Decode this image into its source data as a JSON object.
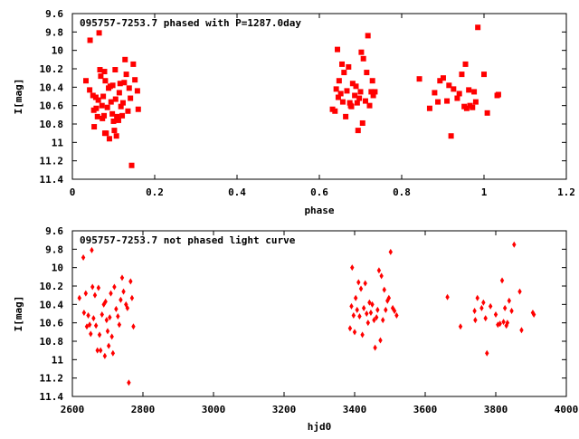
{
  "chart_data": [
    {
      "type": "scatter",
      "title": "095757-7253.7 phased with P=1287.0day",
      "xlabel": "phase",
      "ylabel": "I[mag]",
      "xlim": [
        0,
        1.2
      ],
      "ylim": [
        11.4,
        9.6
      ],
      "y_inverted": true,
      "x_ticks": [
        "0",
        "0.2",
        "0.4",
        "0.6",
        "0.8",
        "1",
        "1.2"
      ],
      "y_ticks": [
        "9.6",
        "9.8",
        "10",
        "10.2",
        "10.4",
        "10.6",
        "10.8",
        "11",
        "11.2",
        "11.4"
      ],
      "marker": "filled-square",
      "color": "#ff0000",
      "points": [
        [
          0.033,
          10.33
        ],
        [
          0.042,
          10.43
        ],
        [
          0.043,
          9.89
        ],
        [
          0.05,
          10.49
        ],
        [
          0.052,
          10.65
        ],
        [
          0.053,
          10.83
        ],
        [
          0.057,
          10.51
        ],
        [
          0.058,
          10.63
        ],
        [
          0.061,
          10.72
        ],
        [
          0.063,
          10.54
        ],
        [
          0.065,
          9.81
        ],
        [
          0.067,
          10.21
        ],
        [
          0.069,
          10.28
        ],
        [
          0.072,
          10.6
        ],
        [
          0.073,
          10.74
        ],
        [
          0.075,
          10.5
        ],
        [
          0.077,
          10.71
        ],
        [
          0.078,
          10.23
        ],
        [
          0.079,
          10.9
        ],
        [
          0.08,
          10.33
        ],
        [
          0.082,
          10.9
        ],
        [
          0.085,
          10.62
        ],
        [
          0.088,
          10.41
        ],
        [
          0.09,
          10.96
        ],
        [
          0.092,
          10.39
        ],
        [
          0.094,
          10.56
        ],
        [
          0.097,
          10.69
        ],
        [
          0.098,
          10.38
        ],
        [
          0.1,
          10.77
        ],
        [
          0.102,
          10.87
        ],
        [
          0.104,
          10.21
        ],
        [
          0.105,
          10.53
        ],
        [
          0.107,
          10.93
        ],
        [
          0.108,
          10.72
        ],
        [
          0.112,
          10.76
        ],
        [
          0.114,
          10.46
        ],
        [
          0.116,
          10.36
        ],
        [
          0.118,
          10.61
        ],
        [
          0.121,
          10.71
        ],
        [
          0.123,
          10.57
        ],
        [
          0.126,
          10.35
        ],
        [
          0.128,
          10.1
        ],
        [
          0.131,
          10.26
        ],
        [
          0.135,
          10.66
        ],
        [
          0.138,
          10.41
        ],
        [
          0.141,
          10.52
        ],
        [
          0.144,
          11.25
        ],
        [
          0.148,
          10.15
        ],
        [
          0.152,
          10.32
        ],
        [
          0.158,
          10.44
        ],
        [
          0.16,
          10.64
        ],
        [
          0.632,
          10.64
        ],
        [
          0.638,
          10.66
        ],
        [
          0.641,
          10.42
        ],
        [
          0.644,
          9.99
        ],
        [
          0.646,
          10.51
        ],
        [
          0.648,
          10.33
        ],
        [
          0.652,
          10.47
        ],
        [
          0.655,
          10.15
        ],
        [
          0.657,
          10.56
        ],
        [
          0.66,
          10.24
        ],
        [
          0.664,
          10.72
        ],
        [
          0.667,
          10.44
        ],
        [
          0.671,
          10.18
        ],
        [
          0.674,
          10.57
        ],
        [
          0.676,
          10.6
        ],
        [
          0.678,
          10.61
        ],
        [
          0.681,
          10.36
        ],
        [
          0.686,
          10.49
        ],
        [
          0.689,
          10.39
        ],
        [
          0.692,
          10.57
        ],
        [
          0.694,
          10.87
        ],
        [
          0.697,
          10.52
        ],
        [
          0.7,
          10.45
        ],
        [
          0.702,
          10.02
        ],
        [
          0.705,
          10.79
        ],
        [
          0.707,
          10.09
        ],
        [
          0.712,
          10.55
        ],
        [
          0.715,
          10.24
        ],
        [
          0.718,
          9.84
        ],
        [
          0.722,
          10.6
        ],
        [
          0.726,
          10.45
        ],
        [
          0.729,
          10.33
        ],
        [
          0.731,
          10.49
        ],
        [
          0.735,
          10.45
        ],
        [
          0.843,
          10.31
        ],
        [
          0.868,
          10.63
        ],
        [
          0.88,
          10.46
        ],
        [
          0.888,
          10.56
        ],
        [
          0.893,
          10.33
        ],
        [
          0.901,
          10.3
        ],
        [
          0.91,
          10.55
        ],
        [
          0.915,
          10.38
        ],
        [
          0.92,
          10.93
        ],
        [
          0.926,
          10.42
        ],
        [
          0.935,
          10.52
        ],
        [
          0.94,
          10.47
        ],
        [
          0.946,
          10.26
        ],
        [
          0.952,
          10.61
        ],
        [
          0.955,
          10.15
        ],
        [
          0.958,
          10.63
        ],
        [
          0.963,
          10.43
        ],
        [
          0.966,
          10.6
        ],
        [
          0.972,
          10.62
        ],
        [
          0.976,
          10.45
        ],
        [
          0.98,
          10.56
        ],
        [
          0.985,
          9.75
        ],
        [
          1.0,
          10.26
        ],
        [
          1.008,
          10.68
        ],
        [
          1.032,
          10.49
        ],
        [
          1.035,
          10.48
        ]
      ]
    },
    {
      "type": "scatter",
      "title": "095757-7253.7 not phased light curve",
      "xlabel": "hjd0",
      "ylabel": "I[mag]",
      "xlim": [
        2600,
        4000
      ],
      "ylim": [
        11.4,
        9.6
      ],
      "y_inverted": true,
      "x_ticks": [
        "2600",
        "2800",
        "3000",
        "3200",
        "3400",
        "3600",
        "3800",
        "4000"
      ],
      "y_ticks": [
        "9.6",
        "9.8",
        "10",
        "10.2",
        "10.4",
        "10.6",
        "10.8",
        "11",
        "11.2",
        "11.4"
      ],
      "marker": "filled-diamond",
      "color": "#ff0000",
      "points": [
        [
          2620,
          10.33
        ],
        [
          2631,
          9.89
        ],
        [
          2633,
          10.49
        ],
        [
          2638,
          10.28
        ],
        [
          2641,
          10.64
        ],
        [
          2645,
          10.52
        ],
        [
          2649,
          10.62
        ],
        [
          2652,
          10.72
        ],
        [
          2655,
          9.81
        ],
        [
          2657,
          10.21
        ],
        [
          2660,
          10.55
        ],
        [
          2664,
          10.3
        ],
        [
          2667,
          10.63
        ],
        [
          2671,
          10.9
        ],
        [
          2674,
          10.22
        ],
        [
          2677,
          10.73
        ],
        [
          2680,
          10.9
        ],
        [
          2684,
          10.51
        ],
        [
          2689,
          10.4
        ],
        [
          2692,
          10.96
        ],
        [
          2694,
          10.37
        ],
        [
          2697,
          10.57
        ],
        [
          2700,
          10.69
        ],
        [
          2703,
          10.85
        ],
        [
          2706,
          10.54
        ],
        [
          2709,
          10.28
        ],
        [
          2712,
          10.75
        ],
        [
          2715,
          10.93
        ],
        [
          2719,
          10.21
        ],
        [
          2724,
          10.45
        ],
        [
          2729,
          10.53
        ],
        [
          2733,
          10.62
        ],
        [
          2737,
          10.35
        ],
        [
          2741,
          10.11
        ],
        [
          2745,
          10.26
        ],
        [
          2752,
          10.4
        ],
        [
          2756,
          10.44
        ],
        [
          2760,
          11.25
        ],
        [
          2765,
          10.15
        ],
        [
          2769,
          10.33
        ],
        [
          2773,
          10.64
        ],
        [
          3387,
          10.66
        ],
        [
          3391,
          10.42
        ],
        [
          3393,
          10.0
        ],
        [
          3397,
          10.52
        ],
        [
          3400,
          10.7
        ],
        [
          3403,
          10.33
        ],
        [
          3407,
          10.46
        ],
        [
          3411,
          10.16
        ],
        [
          3414,
          10.53
        ],
        [
          3418,
          10.23
        ],
        [
          3422,
          10.73
        ],
        [
          3426,
          10.44
        ],
        [
          3430,
          10.17
        ],
        [
          3434,
          10.5
        ],
        [
          3438,
          10.6
        ],
        [
          3442,
          10.38
        ],
        [
          3446,
          10.49
        ],
        [
          3450,
          10.4
        ],
        [
          3455,
          10.57
        ],
        [
          3458,
          10.87
        ],
        [
          3462,
          10.54
        ],
        [
          3465,
          10.46
        ],
        [
          3469,
          10.03
        ],
        [
          3473,
          10.79
        ],
        [
          3476,
          10.09
        ],
        [
          3480,
          10.57
        ],
        [
          3484,
          10.24
        ],
        [
          3488,
          10.46
        ],
        [
          3493,
          10.36
        ],
        [
          3497,
          10.33
        ],
        [
          3502,
          9.83
        ],
        [
          3508,
          10.44
        ],
        [
          3513,
          10.47
        ],
        [
          3519,
          10.52
        ],
        [
          3663,
          10.32
        ],
        [
          3700,
          10.64
        ],
        [
          3740,
          10.47
        ],
        [
          3742,
          10.57
        ],
        [
          3748,
          10.33
        ],
        [
          3760,
          10.44
        ],
        [
          3765,
          10.38
        ],
        [
          3771,
          10.55
        ],
        [
          3775,
          10.93
        ],
        [
          3785,
          10.42
        ],
        [
          3800,
          10.51
        ],
        [
          3806,
          10.62
        ],
        [
          3812,
          10.61
        ],
        [
          3818,
          10.14
        ],
        [
          3822,
          10.59
        ],
        [
          3826,
          10.44
        ],
        [
          3830,
          10.63
        ],
        [
          3833,
          10.6
        ],
        [
          3838,
          10.36
        ],
        [
          3845,
          10.47
        ],
        [
          3852,
          9.75
        ],
        [
          3868,
          10.26
        ],
        [
          3873,
          10.68
        ],
        [
          3905,
          10.49
        ],
        [
          3908,
          10.51
        ]
      ]
    }
  ]
}
